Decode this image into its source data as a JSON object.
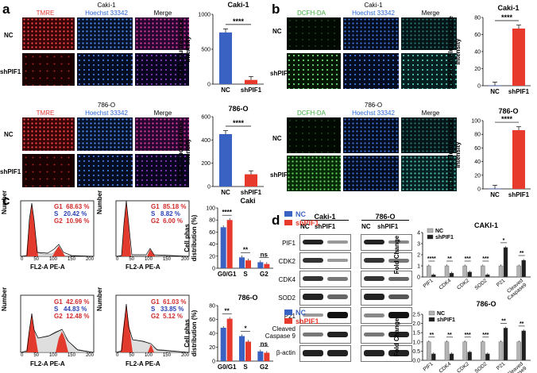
{
  "panels": [
    "a",
    "b",
    "c",
    "d"
  ],
  "colors": {
    "nc": "#3a62c2",
    "sh": "#e8392d",
    "tmre": "#e53935",
    "dcfh": "#3fae3f",
    "hoechst": "#2a68d8",
    "ncGray": "#b4b4b4",
    "shBlack": "#1f1f1f"
  },
  "a": {
    "cell1": "Caki-1",
    "cell2": "786-O",
    "col_tmre": "TMRE",
    "col_hoechst": "Hoechst 33342",
    "col_merge": "Merge",
    "row_nc": "NC",
    "row_sh": "shPIF1"
  },
  "b": {
    "cell1": "Caki-1",
    "cell2": "786-O",
    "col_dcfh": "DCFH-DA",
    "col_hoechst": "Hoechst 33342",
    "col_merge": "Merge",
    "row_nc": "NC",
    "row_sh": "shPIF1"
  },
  "c": {
    "caki_title": "Caki",
    "o_title": "786-O",
    "xlabel": "FL2-A PE-A",
    "ylabel": "Number",
    "ticks_x": [
      "0",
      "50",
      "100",
      "150",
      "200"
    ],
    "flow": [
      {
        "g1": "G1",
        "g1v": "68.63 %",
        "s": "S",
        "sv": "20.42 %",
        "g2": "G2",
        "g2v": "10.96 %"
      },
      {
        "g1": "G1",
        "g1v": "85.18 %",
        "s": "S",
        "sv": "8.82 %",
        "g2": "G2",
        "g2v": "6.00 %"
      },
      {
        "g1": "G1",
        "g1v": "42.69 %",
        "s": "S",
        "sv": "44.83 %",
        "g2": "G2",
        "g2v": "12.48 %"
      },
      {
        "g1": "G1",
        "g1v": "61.03 %",
        "s": "S",
        "sv": "33.85 %",
        "g2": "G2",
        "g2v": "5.12 %"
      }
    ],
    "legend_nc": "NC",
    "legend_sh": "shPIF1"
  },
  "d": {
    "cell1": "Caki-1",
    "cell2": "786-O",
    "lane_nc": "NC",
    "lane_sh": "shPIF1",
    "bands": [
      "PIF1",
      "CDK2",
      "CDK4",
      "SOD2",
      "P21",
      "Cleaved\nCaspase 9",
      "β-actin"
    ],
    "chart_title1": "CAKI-1",
    "chart_title2": "786-O",
    "legend_nc": "NC",
    "legend_sh": "shPIF1"
  },
  "chart_data": [
    {
      "id": "a1",
      "type": "bar",
      "title": "Caki-1",
      "categories": [
        "NC",
        "shPIF1"
      ],
      "values": [
        740,
        60
      ],
      "ylabel": "TMRE  Fluorescence\nIntensity",
      "ylim": [
        0,
        1000
      ],
      "yticks": [
        0,
        500,
        1000
      ],
      "sig": "****"
    },
    {
      "id": "a2",
      "type": "bar",
      "title": "786-O",
      "categories": [
        "NC",
        "shPIF1"
      ],
      "values": [
        450,
        105
      ],
      "ylabel": "TMRE  Fluorescence\nIntensity",
      "ylim": [
        0,
        600
      ],
      "yticks": [
        0,
        200,
        400,
        600
      ],
      "sig": "****"
    },
    {
      "id": "b1",
      "type": "bar",
      "title": "Caki-1",
      "categories": [
        "NC",
        "shPIF1"
      ],
      "values": [
        0.3,
        67
      ],
      "ylabel": "DCFH-DA  Fluorescence\nIntensity",
      "ylim": [
        0,
        80
      ],
      "yticks": [
        0,
        20,
        40,
        60,
        80
      ],
      "sig": "****"
    },
    {
      "id": "b2",
      "type": "bar",
      "title": "786-O",
      "categories": [
        "NC",
        "shPIF1"
      ],
      "values": [
        0.3,
        86
      ],
      "ylabel": "DCFH-DA  Fluorescence\nIntensity",
      "ylim": [
        0,
        100
      ],
      "yticks": [
        0,
        20,
        40,
        60,
        80,
        100
      ],
      "sig": "****"
    },
    {
      "id": "c1",
      "type": "bar",
      "title": "Caki",
      "categories": [
        "G0/G1",
        "S",
        "G2"
      ],
      "series": [
        {
          "name": "NC",
          "values": [
            68,
            18,
            10
          ]
        },
        {
          "name": "shPIF1",
          "values": [
            80,
            13,
            7
          ]
        }
      ],
      "ylabel": "Cell phas\ndistribution (%)",
      "ylim": [
        0,
        100
      ],
      "yticks": [
        0,
        20,
        40,
        60,
        80,
        100
      ],
      "sigs": [
        "****",
        "**",
        "ns"
      ]
    },
    {
      "id": "c2",
      "type": "bar",
      "title": "786-O",
      "categories": [
        "G0/G1",
        "S",
        "G2"
      ],
      "series": [
        {
          "name": "NC",
          "values": [
            48,
            36,
            14
          ]
        },
        {
          "name": "shPIF1",
          "values": [
            61,
            28,
            12
          ]
        }
      ],
      "ylabel": "Cell phas\ndistribution (%)",
      "ylim": [
        0,
        80
      ],
      "yticks": [
        0,
        20,
        40,
        60,
        80
      ],
      "sigs": [
        "**",
        "*",
        "ns"
      ]
    },
    {
      "id": "d1",
      "type": "bar",
      "title": "CAKI-1",
      "categories": [
        "PIF1",
        "CDK4",
        "CDK2",
        "SOD2",
        "P21",
        "Cleaved\nCaspase9"
      ],
      "series": [
        {
          "name": "NC",
          "values": [
            1,
            1,
            1,
            1,
            1,
            1
          ]
        },
        {
          "name": "shPIF1",
          "values": [
            0.2,
            0.35,
            0.45,
            0.2,
            2.65,
            1.5
          ]
        }
      ],
      "ylabel": "Fold Change",
      "ylim": [
        0,
        4
      ],
      "yticks": [
        0,
        1,
        2,
        3,
        4
      ],
      "sigs": [
        "****",
        "**",
        "***",
        "***",
        "*",
        "**"
      ]
    },
    {
      "id": "d2",
      "type": "bar",
      "title": "786-O",
      "categories": [
        "PIF1",
        "CDK4",
        "CDK2",
        "SOD2",
        "P21",
        "Cleaved\nCaspase9"
      ],
      "series": [
        {
          "name": "NC",
          "values": [
            1,
            1,
            1,
            1,
            1,
            1
          ]
        },
        {
          "name": "shPIF1",
          "values": [
            0.35,
            0.35,
            0.45,
            0.35,
            1.75,
            1.6
          ]
        }
      ],
      "ylabel": "Fold Change",
      "ylim": [
        0,
        2.5
      ],
      "yticks": [
        0.0,
        0.5,
        1.0,
        1.5,
        2.0,
        2.5
      ],
      "sigs": [
        "**",
        "**",
        "***",
        "***",
        "**",
        "**"
      ]
    }
  ]
}
